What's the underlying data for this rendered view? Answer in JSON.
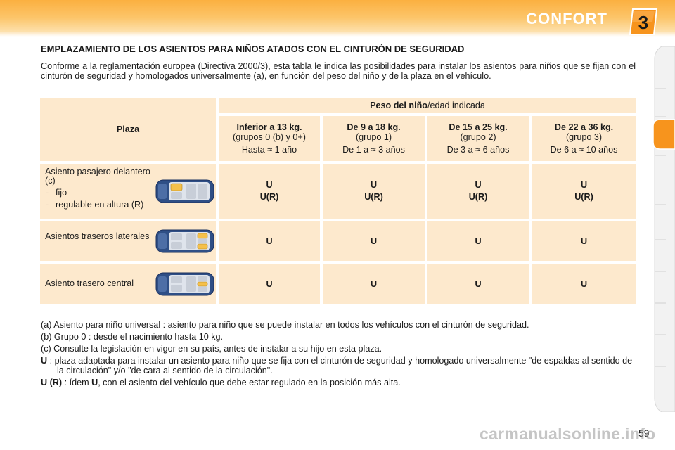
{
  "header": {
    "title": "CONFORT",
    "chapter_number": "3",
    "colors": {
      "band": "#fbb040",
      "badge": "#f7941d"
    }
  },
  "section": {
    "title": "EMPLAZAMIENTO DE LOS ASIENTOS PARA NIÑOS ATADOS CON EL CINTURÓN DE SEGURIDAD",
    "intro": "Conforme a la reglamentación europea (Directiva 2000/3), esta tabla le indica las posibilidades para instalar los asientos para niños que se fijan con el cinturón de seguridad y homologados universalmente (a), en función del peso del niño y de la plaza en el vehículo."
  },
  "table": {
    "plaza_header": "Plaza",
    "weight_header_bold": "Peso del niño",
    "weight_header_rest": "/edad indicada",
    "columns": [
      {
        "weight": "Inferior a 13 kg.",
        "group": "(grupos 0 (b) y 0+)",
        "age": "Hasta ≈ 1 año"
      },
      {
        "weight": "De 9 a 18 kg.",
        "group": "(grupo 1)",
        "age": "De 1 a ≈ 3 años"
      },
      {
        "weight": "De 15 a 25 kg.",
        "group": "(grupo 2)",
        "age": "De 3 a ≈ 6 años"
      },
      {
        "weight": "De 22 a 36 kg.",
        "group": "(grupo 3)",
        "age": "De 6 a ≈ 10 años"
      }
    ],
    "rows": [
      {
        "label": "Asiento pasajero delantero (c)",
        "options": [
          "fijo",
          "regulable en altura (R)"
        ],
        "icon": "car-front-seat-icon",
        "values": [
          [
            "U",
            "U(R)"
          ],
          [
            "U",
            "U(R)"
          ],
          [
            "U",
            "U(R)"
          ],
          [
            "U",
            "U(R)"
          ]
        ]
      },
      {
        "label": "Asientos traseros laterales",
        "icon": "car-rear-side-seats-icon",
        "values": [
          [
            "U"
          ],
          [
            "U"
          ],
          [
            "U"
          ],
          [
            "U"
          ]
        ]
      },
      {
        "label": "Asiento trasero central",
        "icon": "car-rear-center-seat-icon",
        "values": [
          [
            "U"
          ],
          [
            "U"
          ],
          [
            "U"
          ],
          [
            "U"
          ]
        ]
      }
    ]
  },
  "notes": {
    "a": "(a) Asiento para niño universal : asiento para niño que se puede instalar en todos los vehículos con el cinturón de seguridad.",
    "b": "(b) Grupo 0 : desde el nacimiento hasta 10 kg.",
    "c": "(c) Consulte la legislación en vigor en su país, antes de instalar a su hijo en esta plaza.",
    "u_term": "U",
    "u_text": " : plaza adaptada para instalar un asiento para niño que se fija con el cinturón de seguridad y homologado universalmente \"de espaldas al sentido de la circulación\" y/o \"de cara al sentido de la circulación\".",
    "ur_term": "U (R)",
    "ur_mid": " : ídem ",
    "ur_term2": "U",
    "ur_text": ", con el asiento del vehículo que debe estar regulado en la posición más alta."
  },
  "page_number": "59",
  "watermark": "carmanualsonline.info"
}
